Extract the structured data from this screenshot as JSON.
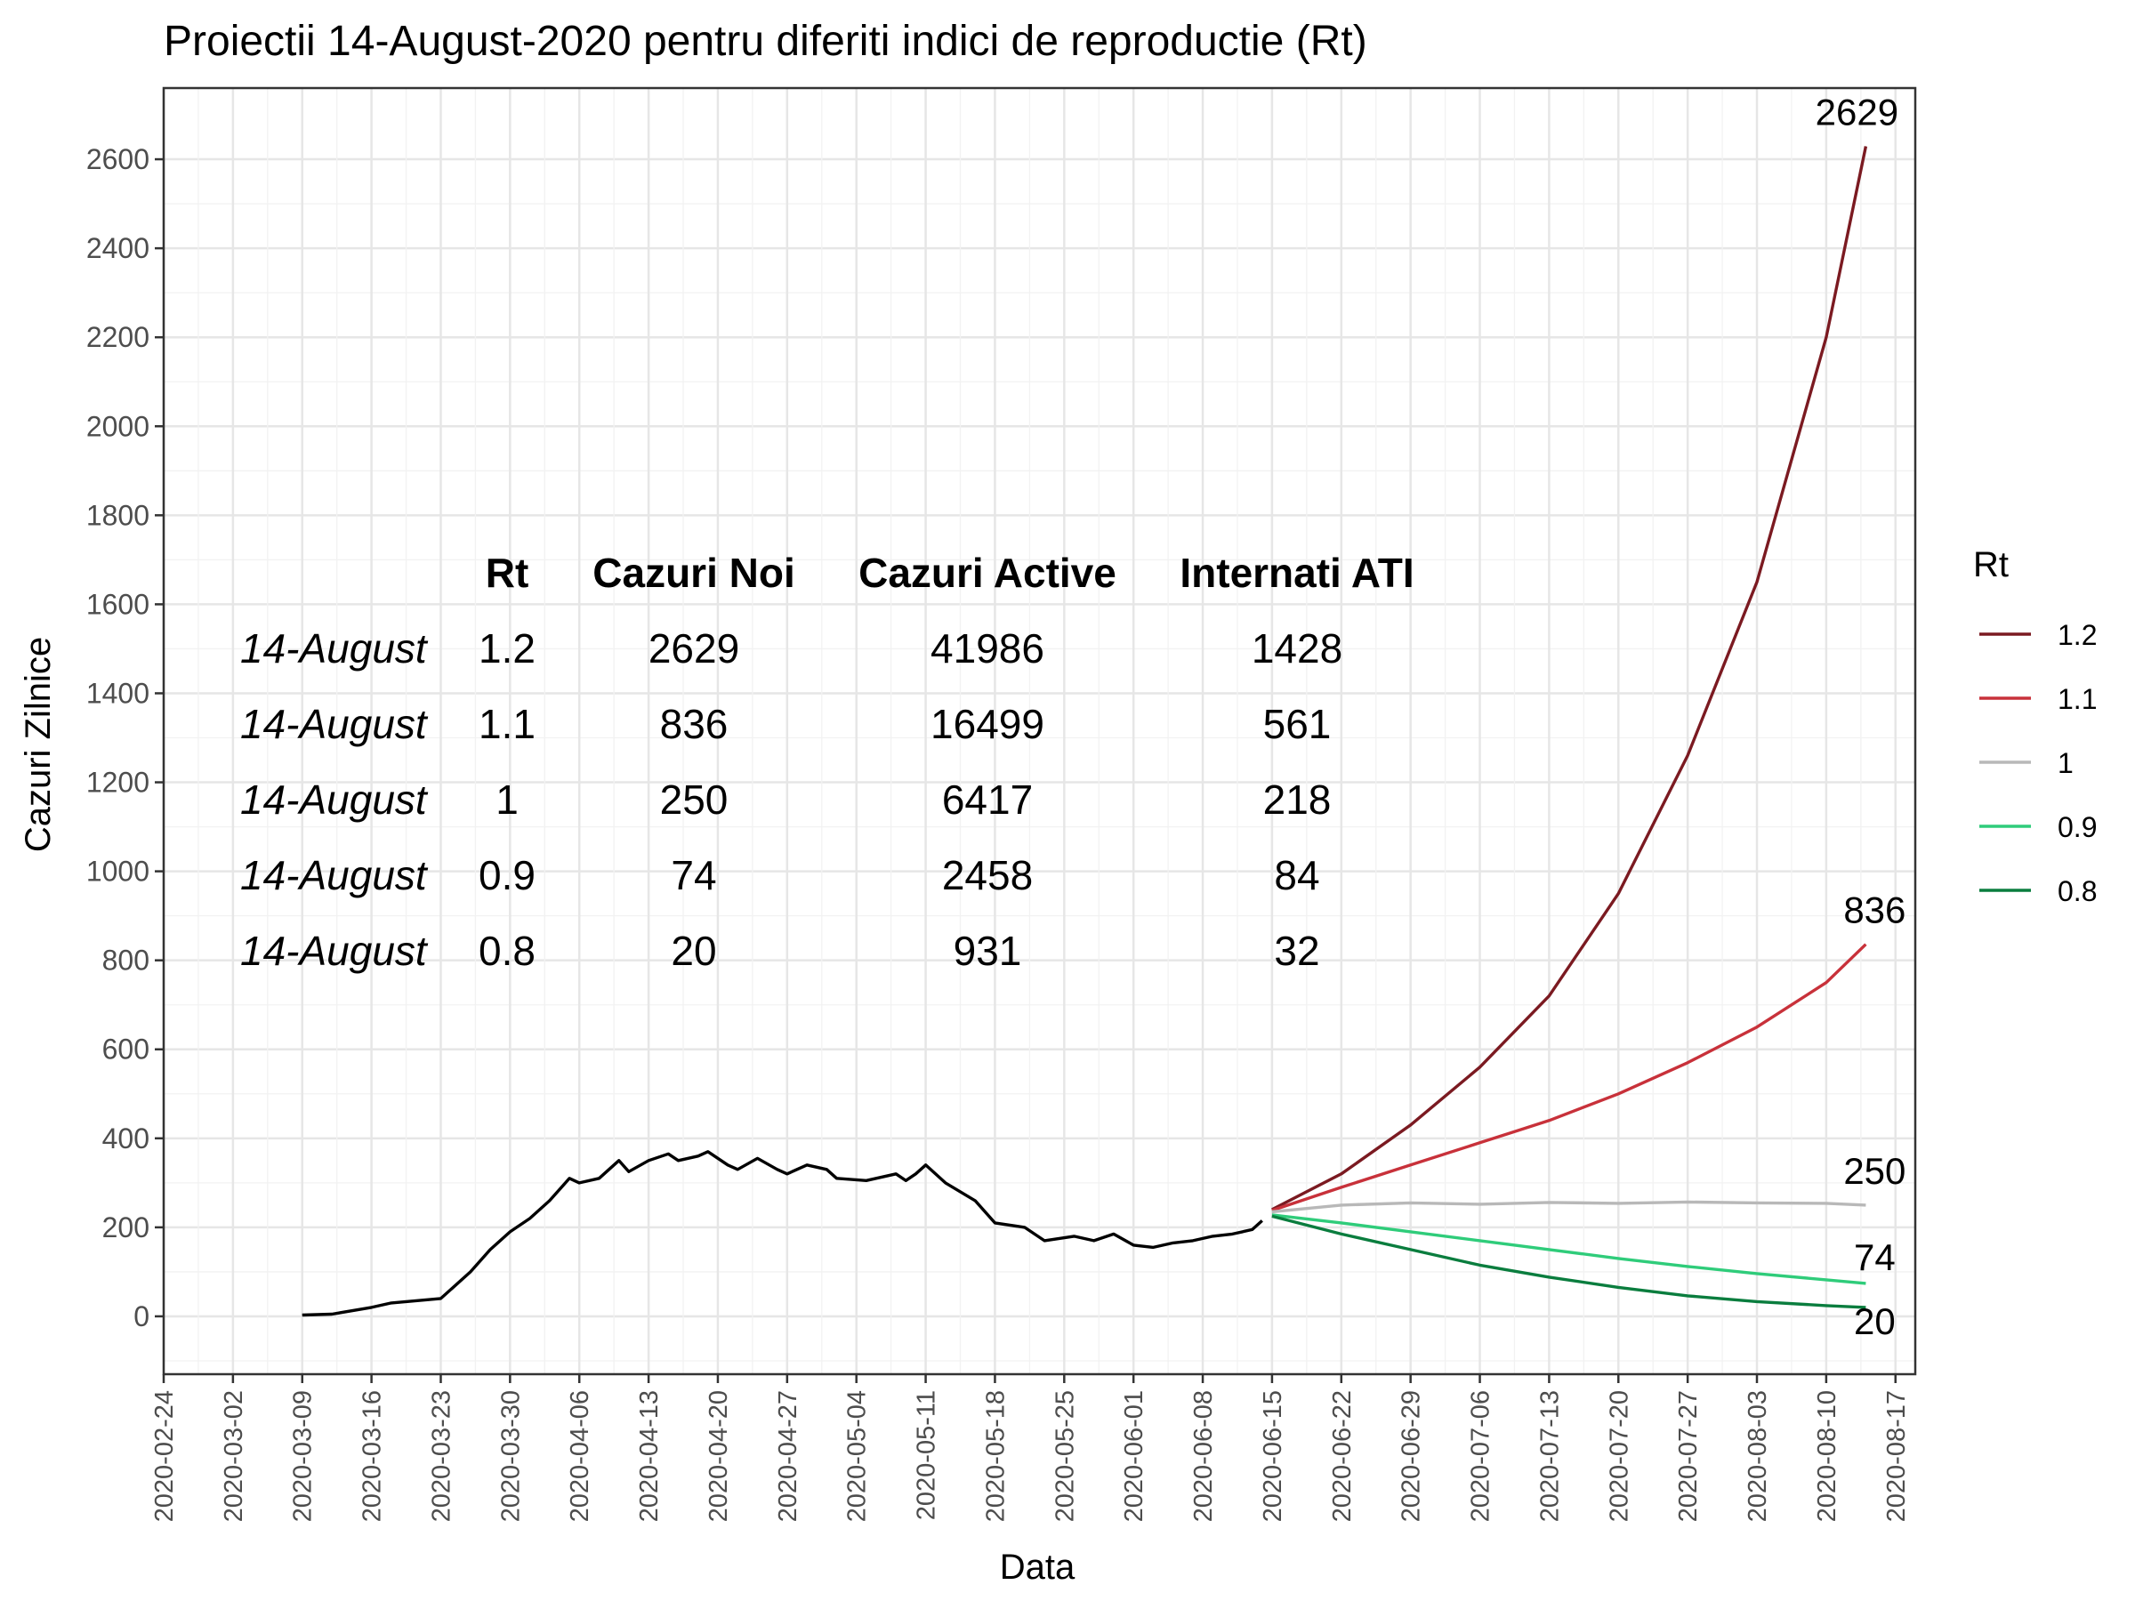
{
  "chart_data": {
    "type": "line",
    "title": "Proiectii 14-August-2020 pentru diferiti indici de reproductie (Rt)",
    "xlabel": "Data",
    "ylabel": "Cazuri Zilnice",
    "xlim": [
      "2020-02-24",
      "2020-08-19"
    ],
    "ylim": [
      -130,
      2760
    ],
    "grid": true,
    "x_ticks": [
      "2020-02-24",
      "2020-03-02",
      "2020-03-09",
      "2020-03-16",
      "2020-03-23",
      "2020-03-30",
      "2020-04-06",
      "2020-04-13",
      "2020-04-20",
      "2020-04-27",
      "2020-05-04",
      "2020-05-11",
      "2020-05-18",
      "2020-05-25",
      "2020-06-01",
      "2020-06-08",
      "2020-06-15",
      "2020-06-22",
      "2020-06-29",
      "2020-07-06",
      "2020-07-13",
      "2020-07-20",
      "2020-07-27",
      "2020-08-03",
      "2020-08-10",
      "2020-08-17"
    ],
    "y_ticks": [
      0,
      200,
      400,
      600,
      800,
      1000,
      1200,
      1400,
      1600,
      1800,
      2000,
      2200,
      2400,
      2600
    ],
    "legend": {
      "title": "Rt",
      "position": "right",
      "entries": [
        {
          "label": "1.2",
          "color": "#7b1a21"
        },
        {
          "label": "1.1",
          "color": "#c8313a"
        },
        {
          "label": "1",
          "color": "#b8b8b8"
        },
        {
          "label": "0.9",
          "color": "#2fcc7a"
        },
        {
          "label": "0.8",
          "color": "#0a7d3e"
        }
      ]
    },
    "observed": {
      "color": "#000000",
      "points": [
        [
          "2020-03-09",
          3
        ],
        [
          "2020-03-12",
          5
        ],
        [
          "2020-03-16",
          20
        ],
        [
          "2020-03-18",
          30
        ],
        [
          "2020-03-23",
          40
        ],
        [
          "2020-03-26",
          100
        ],
        [
          "2020-03-28",
          150
        ],
        [
          "2020-03-30",
          190
        ],
        [
          "2020-04-01",
          220
        ],
        [
          "2020-04-03",
          260
        ],
        [
          "2020-04-05",
          310
        ],
        [
          "2020-04-06",
          300
        ],
        [
          "2020-04-08",
          310
        ],
        [
          "2020-04-10",
          350
        ],
        [
          "2020-04-11",
          325
        ],
        [
          "2020-04-13",
          350
        ],
        [
          "2020-04-15",
          365
        ],
        [
          "2020-04-16",
          350
        ],
        [
          "2020-04-18",
          360
        ],
        [
          "2020-04-19",
          370
        ],
        [
          "2020-04-21",
          340
        ],
        [
          "2020-04-22",
          330
        ],
        [
          "2020-04-24",
          355
        ],
        [
          "2020-04-26",
          330
        ],
        [
          "2020-04-27",
          320
        ],
        [
          "2020-04-29",
          340
        ],
        [
          "2020-05-01",
          330
        ],
        [
          "2020-05-02",
          310
        ],
        [
          "2020-05-05",
          305
        ],
        [
          "2020-05-08",
          320
        ],
        [
          "2020-05-09",
          305
        ],
        [
          "2020-05-10",
          320
        ],
        [
          "2020-05-11",
          340
        ],
        [
          "2020-05-13",
          300
        ],
        [
          "2020-05-16",
          260
        ],
        [
          "2020-05-18",
          210
        ],
        [
          "2020-05-21",
          200
        ],
        [
          "2020-05-23",
          170
        ],
        [
          "2020-05-26",
          180
        ],
        [
          "2020-05-28",
          170
        ],
        [
          "2020-05-30",
          185
        ],
        [
          "2020-06-01",
          160
        ],
        [
          "2020-06-03",
          155
        ],
        [
          "2020-06-05",
          165
        ],
        [
          "2020-06-07",
          170
        ],
        [
          "2020-06-09",
          180
        ],
        [
          "2020-06-11",
          185
        ],
        [
          "2020-06-13",
          195
        ],
        [
          "2020-06-14",
          215
        ]
      ]
    },
    "series": [
      {
        "name": "1.2",
        "color": "#7b1a21",
        "end_label": "2629",
        "points": [
          [
            "2020-06-15",
            240
          ],
          [
            "2020-06-22",
            320
          ],
          [
            "2020-06-29",
            430
          ],
          [
            "2020-07-06",
            560
          ],
          [
            "2020-07-13",
            720
          ],
          [
            "2020-07-20",
            950
          ],
          [
            "2020-07-27",
            1260
          ],
          [
            "2020-08-03",
            1650
          ],
          [
            "2020-08-10",
            2200
          ],
          [
            "2020-08-14",
            2629
          ]
        ]
      },
      {
        "name": "1.1",
        "color": "#c8313a",
        "end_label": "836",
        "points": [
          [
            "2020-06-15",
            238
          ],
          [
            "2020-06-22",
            290
          ],
          [
            "2020-06-29",
            340
          ],
          [
            "2020-07-06",
            390
          ],
          [
            "2020-07-13",
            440
          ],
          [
            "2020-07-20",
            500
          ],
          [
            "2020-07-27",
            570
          ],
          [
            "2020-08-03",
            650
          ],
          [
            "2020-08-10",
            750
          ],
          [
            "2020-08-14",
            836
          ]
        ]
      },
      {
        "name": "1",
        "color": "#b8b8b8",
        "end_label": "250",
        "points": [
          [
            "2020-06-15",
            235
          ],
          [
            "2020-06-22",
            250
          ],
          [
            "2020-06-29",
            255
          ],
          [
            "2020-07-06",
            252
          ],
          [
            "2020-07-13",
            256
          ],
          [
            "2020-07-20",
            254
          ],
          [
            "2020-07-27",
            257
          ],
          [
            "2020-08-03",
            255
          ],
          [
            "2020-08-10",
            254
          ],
          [
            "2020-08-14",
            250
          ]
        ]
      },
      {
        "name": "0.9",
        "color": "#2fcc7a",
        "end_label": "74",
        "points": [
          [
            "2020-06-15",
            228
          ],
          [
            "2020-06-22",
            210
          ],
          [
            "2020-06-29",
            190
          ],
          [
            "2020-07-06",
            170
          ],
          [
            "2020-07-13",
            150
          ],
          [
            "2020-07-20",
            130
          ],
          [
            "2020-07-27",
            112
          ],
          [
            "2020-08-03",
            96
          ],
          [
            "2020-08-10",
            82
          ],
          [
            "2020-08-14",
            74
          ]
        ]
      },
      {
        "name": "0.8",
        "color": "#0a7d3e",
        "end_label": "20",
        "points": [
          [
            "2020-06-15",
            225
          ],
          [
            "2020-06-22",
            185
          ],
          [
            "2020-06-29",
            150
          ],
          [
            "2020-07-06",
            115
          ],
          [
            "2020-07-13",
            88
          ],
          [
            "2020-07-20",
            65
          ],
          [
            "2020-07-27",
            46
          ],
          [
            "2020-08-03",
            33
          ],
          [
            "2020-08-10",
            24
          ],
          [
            "2020-08-14",
            20
          ]
        ]
      }
    ],
    "annotation_table": {
      "headers": [
        "Rt",
        "Cazuri Noi",
        "Cazuri Active",
        "Internati ATI"
      ],
      "rows": [
        {
          "date": "14-August",
          "rt": "1.2",
          "noi": "2629",
          "active": "41986",
          "ati": "1428"
        },
        {
          "date": "14-August",
          "rt": "1.1",
          "noi": "836",
          "active": "16499",
          "ati": "561"
        },
        {
          "date": "14-August",
          "rt": "1",
          "noi": "250",
          "active": "6417",
          "ati": "218"
        },
        {
          "date": "14-August",
          "rt": "0.9",
          "noi": "74",
          "active": "2458",
          "ati": "84"
        },
        {
          "date": "14-August",
          "rt": "0.8",
          "noi": "20",
          "active": "931",
          "ati": "32"
        }
      ]
    }
  }
}
